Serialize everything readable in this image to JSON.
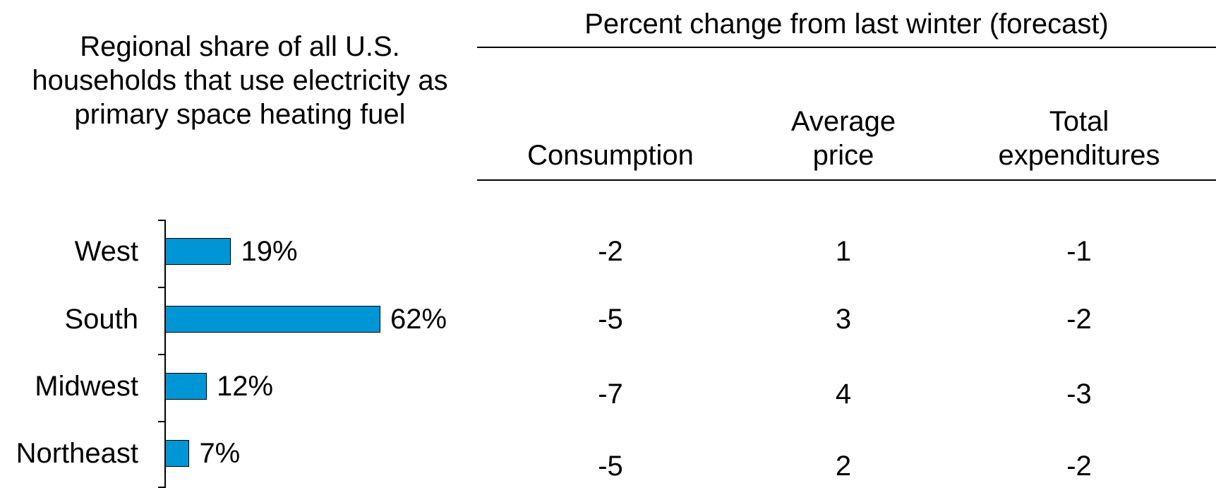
{
  "chart_data": {
    "type": "bar",
    "orientation": "horizontal",
    "title": "Regional share of all U.S. households that use electricity as primary space heating fuel",
    "categories": [
      "West",
      "South",
      "Midwest",
      "Northeast"
    ],
    "values": [
      19,
      62,
      12,
      7
    ],
    "value_labels": [
      "19%",
      "62%",
      "12%",
      "7%"
    ],
    "color": "#0096d6"
  },
  "table": {
    "title": "Percent change from last winter (forecast)",
    "columns": [
      "Consumption",
      "Average price",
      "Total expenditures"
    ],
    "rows": [
      [
        -2,
        1,
        -1
      ],
      [
        -5,
        3,
        -2
      ],
      [
        -7,
        4,
        -3
      ],
      [
        -5,
        2,
        -2
      ]
    ]
  }
}
